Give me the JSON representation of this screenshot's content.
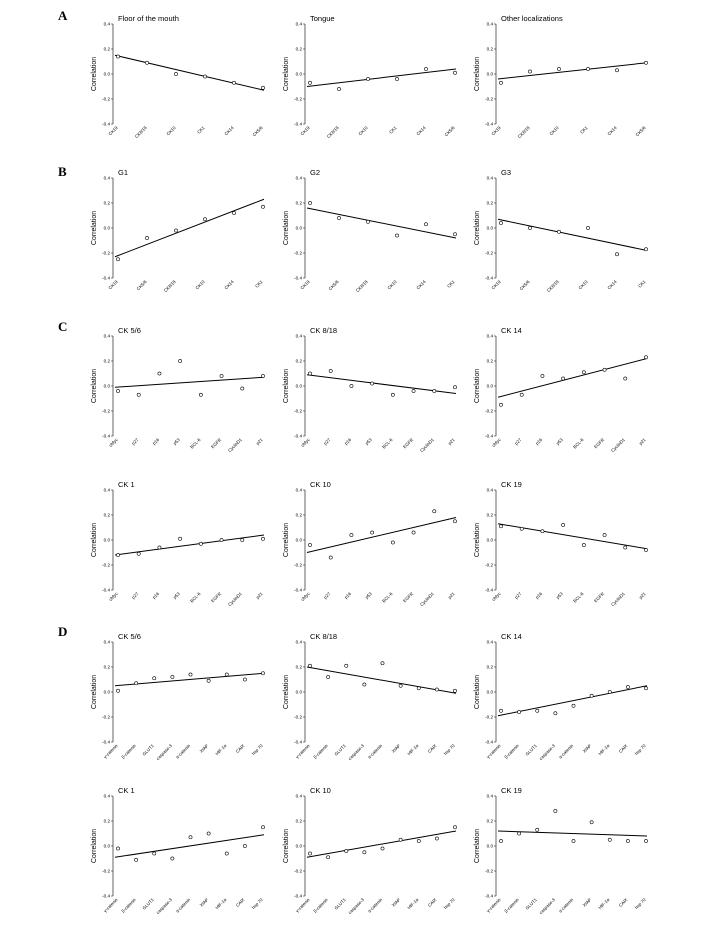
{
  "sections": [
    {
      "label": "A"
    },
    {
      "label": "B"
    },
    {
      "label": "C"
    },
    {
      "label": "D"
    }
  ],
  "chart_data": [
    {
      "type": "scatter",
      "section": "A",
      "title": "Floor of the mouth",
      "ylabel": "Correlation",
      "ylim": [
        -0.4,
        0.4
      ],
      "yticks": [
        "0.4",
        "0.2",
        "0.0",
        "-0.2",
        "-0.4"
      ],
      "categories": [
        "CK19",
        "CK8/18",
        "CK10",
        "CK1",
        "CK14",
        "CK5/6"
      ],
      "values": [
        0.14,
        0.09,
        0.0,
        -0.02,
        -0.07,
        -0.11
      ],
      "trend": [
        0.15,
        -0.13
      ]
    },
    {
      "type": "scatter",
      "section": "A",
      "title": "Tongue",
      "ylabel": "Correlation",
      "ylim": [
        -0.4,
        0.4
      ],
      "yticks": [
        "0.4",
        "0.2",
        "0.0",
        "-0.2",
        "-0.4"
      ],
      "categories": [
        "CK19",
        "CK8/18",
        "CK10",
        "CK1",
        "CK14",
        "CK5/6"
      ],
      "values": [
        -0.07,
        -0.12,
        -0.04,
        -0.04,
        0.04,
        0.01
      ],
      "trend": [
        -0.1,
        0.04
      ]
    },
    {
      "type": "scatter",
      "section": "A",
      "title": "Other localizations",
      "ylabel": "Correlation",
      "ylim": [
        -0.4,
        0.4
      ],
      "yticks": [
        "0.4",
        "0.2",
        "0.0",
        "-0.2",
        "-0.4"
      ],
      "categories": [
        "CK19",
        "CK8/18",
        "CK10",
        "CK1",
        "CK14",
        "CK5/6"
      ],
      "values": [
        -0.07,
        0.02,
        0.04,
        0.04,
        0.03,
        0.09
      ],
      "trend": [
        -0.04,
        0.09
      ]
    },
    {
      "type": "scatter",
      "section": "B",
      "title": "G1",
      "ylabel": "Correlation",
      "ylim": [
        -0.4,
        0.4
      ],
      "yticks": [
        "0.4",
        "0.2",
        "0.0",
        "-0.2",
        "-0.4"
      ],
      "categories": [
        "CK19",
        "CK5/6",
        "CK8/18",
        "CK10",
        "CK14",
        "CK1"
      ],
      "values": [
        -0.25,
        -0.08,
        -0.02,
        0.07,
        0.12,
        0.17
      ],
      "trend": [
        -0.23,
        0.23
      ]
    },
    {
      "type": "scatter",
      "section": "B",
      "title": "G2",
      "ylabel": "Correlation",
      "ylim": [
        -0.4,
        0.4
      ],
      "yticks": [
        "0.4",
        "0.2",
        "0.0",
        "-0.2",
        "-0.4"
      ],
      "categories": [
        "CK19",
        "CK5/6",
        "CK8/18",
        "CK10",
        "CK14",
        "CK1"
      ],
      "values": [
        0.2,
        0.08,
        0.05,
        -0.06,
        0.03,
        -0.05
      ],
      "trend": [
        0.16,
        -0.08
      ]
    },
    {
      "type": "scatter",
      "section": "B",
      "title": "G3",
      "ylabel": "Correlation",
      "ylim": [
        -0.4,
        0.4
      ],
      "yticks": [
        "0.4",
        "0.2",
        "0.0",
        "-0.2",
        "-0.4"
      ],
      "categories": [
        "CK19",
        "CK5/6",
        "CK8/18",
        "CK10",
        "CK14",
        "CK1"
      ],
      "values": [
        0.04,
        0.0,
        -0.03,
        0.0,
        -0.21,
        -0.17
      ],
      "trend": [
        0.07,
        -0.18
      ]
    },
    {
      "type": "scatter",
      "section": "C",
      "title": "CK 5/6",
      "ylabel": "Correlation",
      "ylim": [
        -0.4,
        0.4
      ],
      "yticks": [
        "0.4",
        "0.2",
        "0.0",
        "-0.2",
        "-0.4"
      ],
      "categories": [
        "cMyc",
        "p27",
        "p16",
        "p53",
        "BCL-6",
        "EGFR",
        "CyclinD1",
        "p21"
      ],
      "values": [
        -0.04,
        -0.07,
        0.1,
        0.2,
        -0.07,
        0.08,
        -0.02,
        0.08
      ],
      "trend": [
        -0.01,
        0.07
      ]
    },
    {
      "type": "scatter",
      "section": "C",
      "title": "CK 8/18",
      "ylabel": "Correlation",
      "ylim": [
        -0.4,
        0.4
      ],
      "yticks": [
        "0.4",
        "0.2",
        "0.0",
        "-0.2",
        "-0.4"
      ],
      "categories": [
        "cMyc",
        "p27",
        "p16",
        "p53",
        "BCL-6",
        "EGFR",
        "CyclinD1",
        "p21"
      ],
      "values": [
        0.1,
        0.12,
        0.0,
        0.02,
        -0.07,
        -0.04,
        -0.04,
        -0.01
      ],
      "trend": [
        0.09,
        -0.06
      ]
    },
    {
      "type": "scatter",
      "section": "C",
      "title": "CK 14",
      "ylabel": "Correlation",
      "ylim": [
        -0.4,
        0.4
      ],
      "yticks": [
        "0.4",
        "0.2",
        "0.0",
        "-0.2",
        "-0.4"
      ],
      "categories": [
        "cMyc",
        "p27",
        "p16",
        "p53",
        "BCL-6",
        "EGFR",
        "CyclinD1",
        "p21"
      ],
      "values": [
        -0.15,
        -0.07,
        0.08,
        0.06,
        0.11,
        0.13,
        0.06,
        0.23
      ],
      "trend": [
        -0.09,
        0.22
      ]
    },
    {
      "type": "scatter",
      "section": "C",
      "title": "CK 1",
      "ylabel": "Correlation",
      "ylim": [
        -0.4,
        0.4
      ],
      "yticks": [
        "0.4",
        "0.2",
        "0.0",
        "-0.2",
        "-0.4"
      ],
      "categories": [
        "cMyc",
        "p27",
        "p16",
        "p53",
        "BCL-6",
        "EGFR",
        "CyclinD1",
        "p21"
      ],
      "values": [
        -0.12,
        -0.11,
        -0.06,
        0.01,
        -0.03,
        0.0,
        0.0,
        0.01
      ],
      "trend": [
        -0.12,
        0.04
      ]
    },
    {
      "type": "scatter",
      "section": "C",
      "title": "CK 10",
      "ylabel": "Correlation",
      "ylim": [
        -0.4,
        0.4
      ],
      "yticks": [
        "0.4",
        "0.2",
        "0.0",
        "-0.2",
        "-0.4"
      ],
      "categories": [
        "cMyc",
        "p27",
        "p16",
        "p53",
        "BCL-6",
        "EGFR",
        "CyclinD1",
        "p21"
      ],
      "values": [
        -0.04,
        -0.14,
        0.04,
        0.06,
        -0.02,
        0.06,
        0.23,
        0.15
      ],
      "trend": [
        -0.1,
        0.18
      ]
    },
    {
      "type": "scatter",
      "section": "C",
      "title": "CK 19",
      "ylabel": "Correlation",
      "ylim": [
        -0.4,
        0.4
      ],
      "yticks": [
        "0.4",
        "0.2",
        "0.0",
        "-0.2",
        "-0.4"
      ],
      "categories": [
        "cMyc",
        "p27",
        "p16",
        "p53",
        "BCL-6",
        "EGFR",
        "CyclinD1",
        "p21"
      ],
      "values": [
        0.11,
        0.09,
        0.07,
        0.12,
        -0.04,
        0.04,
        -0.06,
        -0.08
      ],
      "trend": [
        0.13,
        -0.07
      ]
    },
    {
      "type": "scatter",
      "section": "D",
      "title": "CK 5/6",
      "ylabel": "Correlation",
      "ylim": [
        -0.4,
        0.4
      ],
      "yticks": [
        "0.4",
        "0.2",
        "0.0",
        "-0.2",
        "-0.4"
      ],
      "categories": [
        "γ-catenin",
        "β-catenin",
        "GLUT1",
        "caspase-3",
        "α-catenin",
        "XIAP",
        "HIF-1α",
        "CAIX",
        "hsp 70"
      ],
      "values": [
        0.01,
        0.07,
        0.11,
        0.12,
        0.14,
        0.09,
        0.14,
        0.1,
        0.15
      ],
      "trend": [
        0.05,
        0.15
      ]
    },
    {
      "type": "scatter",
      "section": "D",
      "title": "CK 8/18",
      "ylabel": "Correlation",
      "ylim": [
        -0.4,
        0.4
      ],
      "yticks": [
        "0.4",
        "0.2",
        "0.0",
        "-0.2",
        "-0.4"
      ],
      "categories": [
        "γ-catenin",
        "β-catenin",
        "GLUT1",
        "caspase-3",
        "α-catenin",
        "XIAP",
        "HIF-1α",
        "CAIX",
        "hsp 70"
      ],
      "values": [
        0.21,
        0.12,
        0.21,
        0.06,
        0.23,
        0.05,
        0.03,
        0.02,
        0.01
      ],
      "trend": [
        0.2,
        -0.01
      ]
    },
    {
      "type": "scatter",
      "section": "D",
      "title": "CK 14",
      "ylabel": "Correlation",
      "ylim": [
        -0.4,
        0.4
      ],
      "yticks": [
        "0.4",
        "0.2",
        "0.0",
        "-0.2",
        "-0.4"
      ],
      "categories": [
        "γ-catenin",
        "β-catenin",
        "GLUT1",
        "caspase-3",
        "α-catenin",
        "XIAP",
        "HIF-1α",
        "CAIX",
        "hsp 70"
      ],
      "values": [
        -0.15,
        -0.16,
        -0.15,
        -0.17,
        -0.11,
        -0.03,
        0.0,
        0.04,
        0.03
      ],
      "trend": [
        -0.19,
        0.05
      ]
    },
    {
      "type": "scatter",
      "section": "D",
      "title": "CK 1",
      "ylabel": "Correlation",
      "ylim": [
        -0.4,
        0.4
      ],
      "yticks": [
        "0.4",
        "0.2",
        "0.0",
        "-0.2",
        "-0.4"
      ],
      "categories": [
        "γ-catenin",
        "β-catenin",
        "GLUT1",
        "caspase-3",
        "α-catenin",
        "XIAP",
        "HIF-1α",
        "CAIX",
        "hsp 70"
      ],
      "values": [
        -0.02,
        -0.11,
        -0.06,
        -0.1,
        0.07,
        0.1,
        -0.06,
        0.0,
        0.15
      ],
      "trend": [
        -0.09,
        0.09
      ]
    },
    {
      "type": "scatter",
      "section": "D",
      "title": "CK 10",
      "ylabel": "Correlation",
      "ylim": [
        -0.4,
        0.4
      ],
      "yticks": [
        "0.4",
        "0.2",
        "0.0",
        "-0.2",
        "-0.4"
      ],
      "categories": [
        "γ-catenin",
        "β-catenin",
        "GLUT1",
        "caspase-3",
        "α-catenin",
        "XIAP",
        "HIF-1α",
        "CAIX",
        "hsp 70"
      ],
      "values": [
        -0.06,
        -0.09,
        -0.04,
        -0.05,
        -0.02,
        0.05,
        0.04,
        0.06,
        0.15
      ],
      "trend": [
        -0.09,
        0.12
      ]
    },
    {
      "type": "scatter",
      "section": "D",
      "title": "CK 19",
      "ylabel": "Correlation",
      "ylim": [
        -0.4,
        0.4
      ],
      "yticks": [
        "0.4",
        "0.2",
        "0.0",
        "-0.2",
        "-0.4"
      ],
      "categories": [
        "γ-catenin",
        "β-catenin",
        "GLUT1",
        "caspase-3",
        "α-catenin",
        "XIAP",
        "HIF-1α",
        "CAIX",
        "hsp 70"
      ],
      "values": [
        0.04,
        0.1,
        0.13,
        0.28,
        0.04,
        0.19,
        0.05,
        0.04,
        0.04
      ],
      "trend": [
        0.12,
        0.08
      ]
    }
  ]
}
